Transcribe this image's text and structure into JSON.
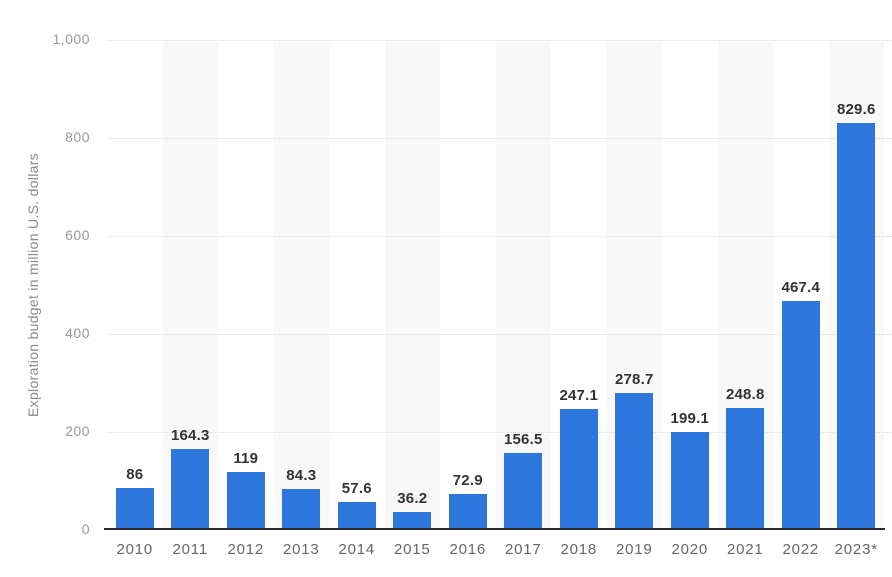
{
  "chart_data": {
    "type": "bar",
    "categories": [
      "2010",
      "2011",
      "2012",
      "2013",
      "2014",
      "2015",
      "2016",
      "2017",
      "2018",
      "2019",
      "2020",
      "2021",
      "2022",
      "2023*"
    ],
    "values": [
      86,
      164.3,
      119,
      84.3,
      57.6,
      36.2,
      72.9,
      156.5,
      247.1,
      278.7,
      199.1,
      248.8,
      467.4,
      829.6
    ],
    "value_labels": [
      "86",
      "164.3",
      "119",
      "84.3",
      "57.6",
      "36.2",
      "72.9",
      "156.5",
      "247.1",
      "278.7",
      "199.1",
      "248.8",
      "467.4",
      "829.6"
    ],
    "title": "",
    "xlabel": "",
    "ylabel": "Exploration budget in million U.S. dollars",
    "ylim": [
      0,
      1000
    ],
    "yticks": [
      0,
      200,
      400,
      600,
      800,
      1000
    ],
    "ytick_labels": [
      "0",
      "200",
      "400",
      "600",
      "800",
      "1,000"
    ],
    "grid": "horizontal-dotted",
    "legend": "none",
    "band_pattern": "alternating-columns-shaded-odd",
    "colors": {
      "bar": "#2d76db",
      "band": "#f8f8f8",
      "gridline": "#d9d9d9",
      "axis_line": "#2b2b2b",
      "value_label": "#333333",
      "x_tick_label": "#666666",
      "y_tick_label": "#999999",
      "y_axis_title": "#8a8a8a",
      "background": "#ffffff"
    }
  }
}
